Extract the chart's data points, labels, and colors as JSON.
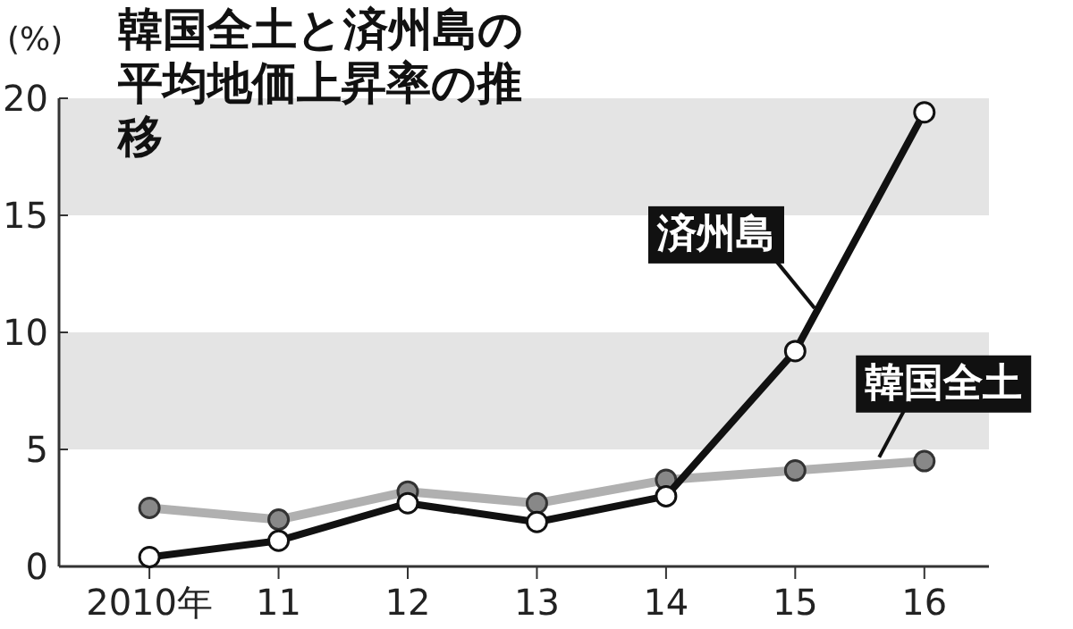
{
  "chart_data": {
    "type": "line",
    "title": "韓国全土と済州島の平均地価上昇率の推移",
    "ylabel": "(%)",
    "x": [
      2010,
      2011,
      2012,
      2013,
      2014,
      2015,
      2016
    ],
    "xlim": [
      2009.3,
      2016.5
    ],
    "xticks": [
      {
        "value": 2010,
        "label": "2010年"
      },
      {
        "value": 2011,
        "label": "11"
      },
      {
        "value": 2012,
        "label": "12"
      },
      {
        "value": 2013,
        "label": "13"
      },
      {
        "value": 2014,
        "label": "14"
      },
      {
        "value": 2015,
        "label": "15"
      },
      {
        "value": 2016,
        "label": "16"
      }
    ],
    "ylim": [
      0,
      20
    ],
    "yticks": [
      0,
      5,
      10,
      15,
      20
    ],
    "bands": [
      {
        "axis": "y",
        "from": 5,
        "to": 10,
        "color": "#e4e4e4"
      },
      {
        "axis": "y",
        "from": 15,
        "to": 20,
        "color": "#e4e4e4"
      }
    ],
    "series": [
      {
        "name": "韓国全土",
        "color": "#b0b0b0",
        "values": [
          2.5,
          2.0,
          3.2,
          2.7,
          3.7,
          4.1,
          4.5
        ]
      },
      {
        "name": "済州島",
        "color": "#111111",
        "values": [
          0.4,
          1.1,
          2.7,
          1.9,
          3.0,
          9.2,
          19.4
        ]
      }
    ],
    "marker": "circle",
    "line_style": "solid",
    "grid": false
  }
}
